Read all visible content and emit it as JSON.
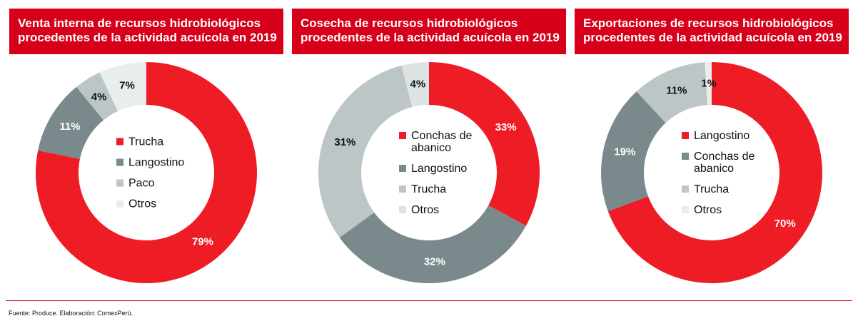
{
  "colors": {
    "banner": "#d7001a",
    "rule": "#d7001a"
  },
  "source": "Fuente: Produce. Elaboración: ComexPerú.",
  "chart_data": [
    {
      "type": "pie",
      "donut": true,
      "title": "Venta interna de recursos hidrobiológicos procedentes de la actividad acuícola en 2019",
      "title_lines": [
        "Venta interna de recursos hidrobiológicos",
        "procedentes de la actividad acuícola en 2019"
      ],
      "slices": [
        {
          "label": "Trucha",
          "label_lines": [
            "Trucha"
          ],
          "value": 79,
          "display": "79%",
          "color": "#ee1c25",
          "text_color": "#ffffff"
        },
        {
          "label": "Langostino",
          "label_lines": [
            "Langostino"
          ],
          "value": 11,
          "display": "11%",
          "color": "#7a8a8c",
          "text_color": "#ffffff"
        },
        {
          "label": "Paco",
          "label_lines": [
            "Paco"
          ],
          "value": 4,
          "display": "4%",
          "color": "#bcc6c6",
          "text_color": "#111111"
        },
        {
          "label": "Otros",
          "label_lines": [
            "Otros"
          ],
          "value": 7,
          "display": "7%",
          "color": "#eaeded",
          "text_color": "#111111"
        }
      ]
    },
    {
      "type": "pie",
      "donut": true,
      "title": "Cosecha de recursos hidrobiológicos procedentes de la actividad acuícola en 2019",
      "title_lines": [
        "Cosecha de recursos hidrobiológicos",
        "procedentes de la actividad acuícola en 2019"
      ],
      "slices": [
        {
          "label": "Conchas de abanico",
          "label_lines": [
            "Conchas de",
            "abanico"
          ],
          "value": 33,
          "display": "33%",
          "color": "#ee1c25",
          "text_color": "#ffffff"
        },
        {
          "label": "Langostino",
          "label_lines": [
            "Langostino"
          ],
          "value": 32,
          "display": "32%",
          "color": "#7a8a8c",
          "text_color": "#ffffff"
        },
        {
          "label": "Trucha",
          "label_lines": [
            "Trucha"
          ],
          "value": 31,
          "display": "31%",
          "color": "#bcc6c6",
          "text_color": "#111111"
        },
        {
          "label": "Otros",
          "label_lines": [
            "Otros"
          ],
          "value": 4,
          "display": "4%",
          "color": "#dde2e2",
          "text_color": "#111111"
        }
      ]
    },
    {
      "type": "pie",
      "donut": true,
      "title": "Exportaciones de recursos hidrobiológicos procedentes de la actividad acuícola en 2019",
      "title_lines": [
        "Exportaciones de recursos hidrobiológicos",
        "procedentes de la actividad acuícola en 2019"
      ],
      "slices": [
        {
          "label": "Langostino",
          "label_lines": [
            "Langostino"
          ],
          "value": 70,
          "display": "70%",
          "color": "#ee1c25",
          "text_color": "#ffffff"
        },
        {
          "label": "Conchas de abanico",
          "label_lines": [
            "Conchas de",
            "abanico"
          ],
          "value": 19,
          "display": "19%",
          "color": "#7a8a8c",
          "text_color": "#ffffff"
        },
        {
          "label": "Trucha",
          "label_lines": [
            "Trucha"
          ],
          "value": 11,
          "display": "11%",
          "color": "#bcc6c6",
          "text_color": "#111111"
        },
        {
          "label": "Otros",
          "label_lines": [
            "Otros"
          ],
          "value": 1,
          "display": "1%",
          "color": "#eaeded",
          "text_color": "#111111"
        }
      ]
    }
  ]
}
